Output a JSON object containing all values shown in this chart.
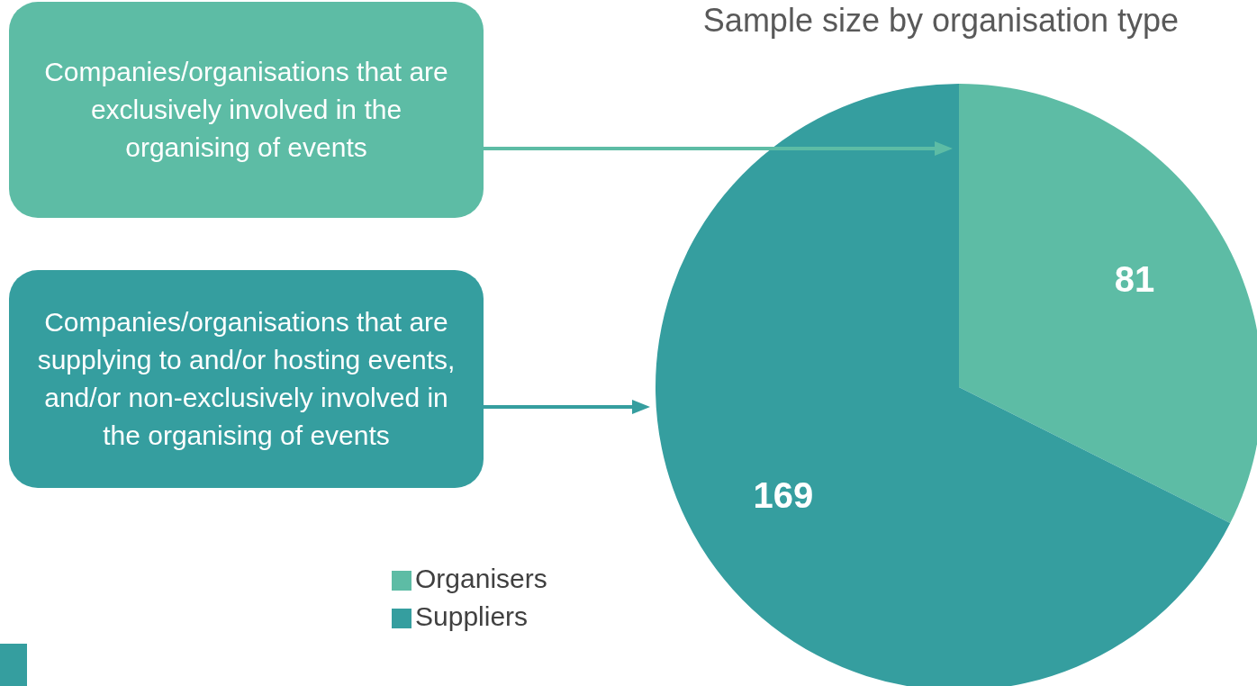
{
  "chart_data": {
    "type": "pie",
    "title": "Sample size by organisation type",
    "categories": [
      "Organisers",
      "Suppliers"
    ],
    "values": [
      81,
      169
    ],
    "colors": [
      "#5dbca5",
      "#359e9f"
    ],
    "data_labels": true,
    "legend": "bottom left",
    "annotations": [
      "Companies/organisations that are exclusively involved in the organising of events",
      "Companies/organisations that are supplying to and/or hosting events, and/or non-exclusively involved in the organising of events"
    ]
  }
}
